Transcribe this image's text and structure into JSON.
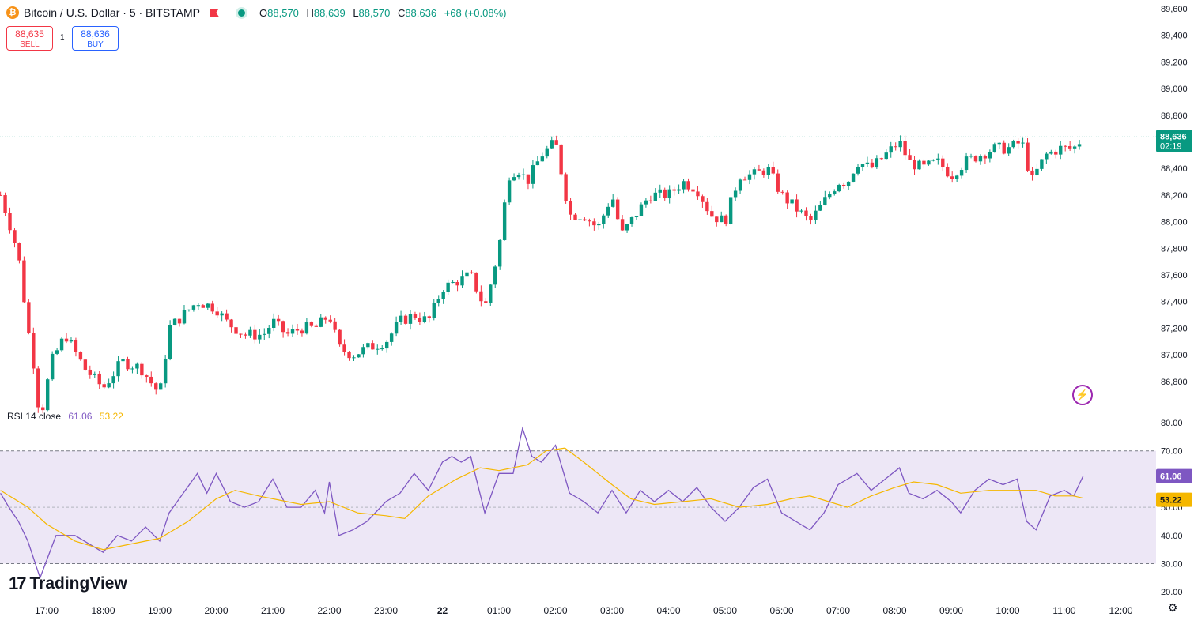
{
  "header": {
    "coin_icon": "bitcoin-icon",
    "coin_glyph": "₿",
    "title": "Bitcoin / U.S. Dollar · 5 · BITSTAMP",
    "flag_icon": "flag-icon",
    "status_icon": "market-open-dot-icon",
    "ohlc": {
      "o_label": "O",
      "o": "88,570",
      "h_label": "H",
      "h": "88,639",
      "l_label": "L",
      "l": "88,570",
      "c_label": "C",
      "c": "88,636",
      "change": "+68 (+0.08%)"
    }
  },
  "trade": {
    "sell_price": "88,635",
    "sell_label": "SELL",
    "qty": "1",
    "buy_price": "88,636",
    "buy_label": "BUY"
  },
  "rsi_legend": {
    "label": "RSI 14 close",
    "rsi_value": "61.06",
    "ma_value": "53.22"
  },
  "logo": {
    "mark": "17",
    "text": "TradingView"
  },
  "icons": {
    "flash": "lightning-icon",
    "settings": "gear-icon"
  },
  "colors": {
    "up": "#089981",
    "down": "#f23645",
    "rsi": "#7e57c2",
    "rsi_ma": "#f5b700",
    "band": "#ede7f6"
  },
  "chart_data": [
    {
      "type": "candlestick",
      "title": "Bitcoin / U.S. Dollar · 5 · BITSTAMP",
      "ylim": [
        86500,
        89650
      ],
      "y_ticks": [
        "89,600",
        "89,400",
        "89,200",
        "89,000",
        "88,800",
        "88,600",
        "88,400",
        "88,200",
        "88,000",
        "87,800",
        "87,600",
        "87,400",
        "87,200",
        "87,000",
        "86,800"
      ],
      "x_ticks": [
        "17:00",
        "18:00",
        "19:00",
        "20:00",
        "21:00",
        "22:00",
        "23:00",
        "22",
        "01:00",
        "02:00",
        "03:00",
        "04:00",
        "05:00",
        "06:00",
        "07:00",
        "08:00",
        "09:00",
        "10:00",
        "11:00",
        "12:00"
      ],
      "last_price": "88,636",
      "countdown": "02:19",
      "close_path": [
        {
          "t": "16:11",
          "close": 88200
        },
        {
          "t": "16:20",
          "close": 88000
        },
        {
          "t": "16:30",
          "close": 87750
        },
        {
          "t": "16:40",
          "close": 87200
        },
        {
          "t": "16:48",
          "close": 86850
        },
        {
          "t": "16:53",
          "close": 86500
        },
        {
          "t": "17:05",
          "close": 86950
        },
        {
          "t": "17:20",
          "close": 87150
        },
        {
          "t": "17:40",
          "close": 86900
        },
        {
          "t": "18:00",
          "close": 86750
        },
        {
          "t": "18:20",
          "close": 86950
        },
        {
          "t": "18:40",
          "close": 86900
        },
        {
          "t": "19:00",
          "close": 86700
        },
        {
          "t": "19:10",
          "close": 87200
        },
        {
          "t": "19:25",
          "close": 87300
        },
        {
          "t": "19:40",
          "close": 87400
        },
        {
          "t": "20:00",
          "close": 87350
        },
        {
          "t": "20:10",
          "close": 87250
        },
        {
          "t": "20:30",
          "close": 87150
        },
        {
          "t": "20:50",
          "close": 87150
        },
        {
          "t": "21:00",
          "close": 87250
        },
        {
          "t": "21:15",
          "close": 87150
        },
        {
          "t": "21:30",
          "close": 87200
        },
        {
          "t": "21:45",
          "close": 87200
        },
        {
          "t": "22:00",
          "close": 87300
        },
        {
          "t": "22:10",
          "close": 87050
        },
        {
          "t": "22:25",
          "close": 87000
        },
        {
          "t": "22:40",
          "close": 87050
        },
        {
          "t": "23:00",
          "close": 87100
        },
        {
          "t": "23:15",
          "close": 87250
        },
        {
          "t": "23:30",
          "close": 87300
        },
        {
          "t": "23:45",
          "close": 87250
        },
        {
          "t": "00:00",
          "close": 87500
        },
        {
          "t": "00:15",
          "close": 87550
        },
        {
          "t": "00:30",
          "close": 87600
        },
        {
          "t": "00:45",
          "close": 87350
        },
        {
          "t": "01:00",
          "close": 87800
        },
        {
          "t": "01:10",
          "close": 88350
        },
        {
          "t": "01:20",
          "close": 88400
        },
        {
          "t": "01:30",
          "close": 88300
        },
        {
          "t": "01:45",
          "close": 88500
        },
        {
          "t": "02:00",
          "close": 88600
        },
        {
          "t": "02:15",
          "close": 88050
        },
        {
          "t": "02:30",
          "close": 88050
        },
        {
          "t": "02:45",
          "close": 87950
        },
        {
          "t": "03:00",
          "close": 88200
        },
        {
          "t": "03:10",
          "close": 87900
        },
        {
          "t": "03:25",
          "close": 88050
        },
        {
          "t": "03:40",
          "close": 88200
        },
        {
          "t": "04:00",
          "close": 88200
        },
        {
          "t": "04:15",
          "close": 88300
        },
        {
          "t": "04:30",
          "close": 88250
        },
        {
          "t": "04:45",
          "close": 88050
        },
        {
          "t": "05:00",
          "close": 88000
        },
        {
          "t": "05:15",
          "close": 88350
        },
        {
          "t": "05:30",
          "close": 88350
        },
        {
          "t": "05:45",
          "close": 88400
        },
        {
          "t": "06:00",
          "close": 88200
        },
        {
          "t": "06:15",
          "close": 88100
        },
        {
          "t": "06:30",
          "close": 88000
        },
        {
          "t": "06:45",
          "close": 88150
        },
        {
          "t": "07:00",
          "close": 88300
        },
        {
          "t": "07:10",
          "close": 88300
        },
        {
          "t": "07:20",
          "close": 88450
        },
        {
          "t": "07:35",
          "close": 88400
        },
        {
          "t": "07:50",
          "close": 88500
        },
        {
          "t": "08:05",
          "close": 88600
        },
        {
          "t": "08:15",
          "close": 88450
        },
        {
          "t": "08:30",
          "close": 88400
        },
        {
          "t": "08:45",
          "close": 88450
        },
        {
          "t": "09:00",
          "close": 88350
        },
        {
          "t": "09:15",
          "close": 88450
        },
        {
          "t": "09:30",
          "close": 88500
        },
        {
          "t": "09:45",
          "close": 88550
        },
        {
          "t": "10:00",
          "close": 88550
        },
        {
          "t": "10:15",
          "close": 88600
        },
        {
          "t": "10:25",
          "close": 88300
        },
        {
          "t": "10:40",
          "close": 88500
        },
        {
          "t": "10:55",
          "close": 88550
        },
        {
          "t": "11:10",
          "close": 88550
        },
        {
          "t": "11:20",
          "close": 88636
        }
      ]
    },
    {
      "type": "line",
      "title": "RSI 14 close",
      "ylim": [
        20,
        80
      ],
      "y_ticks": [
        "80.00",
        "70.00",
        "60.00",
        "50.00",
        "40.00",
        "30.00",
        "20.00"
      ],
      "band": [
        30,
        70
      ],
      "midline": 50,
      "current_rsi": "61.06",
      "current_ma": "53.22",
      "series": [
        {
          "name": "RSI",
          "values": [
            {
              "t": "16:11",
              "v": 55
            },
            {
              "t": "16:20",
              "v": 50
            },
            {
              "t": "16:30",
              "v": 45
            },
            {
              "t": "16:40",
              "v": 38
            },
            {
              "t": "16:53",
              "v": 25
            },
            {
              "t": "17:10",
              "v": 40
            },
            {
              "t": "17:30",
              "v": 40
            },
            {
              "t": "17:50",
              "v": 36
            },
            {
              "t": "18:00",
              "v": 34
            },
            {
              "t": "18:15",
              "v": 40
            },
            {
              "t": "18:30",
              "v": 38
            },
            {
              "t": "18:45",
              "v": 43
            },
            {
              "t": "19:00",
              "v": 38
            },
            {
              "t": "19:10",
              "v": 48
            },
            {
              "t": "19:25",
              "v": 55
            },
            {
              "t": "19:40",
              "v": 62
            },
            {
              "t": "19:50",
              "v": 55
            },
            {
              "t": "20:00",
              "v": 62
            },
            {
              "t": "20:15",
              "v": 52
            },
            {
              "t": "20:30",
              "v": 50
            },
            {
              "t": "20:45",
              "v": 52
            },
            {
              "t": "21:00",
              "v": 60
            },
            {
              "t": "21:15",
              "v": 50
            },
            {
              "t": "21:30",
              "v": 50
            },
            {
              "t": "21:45",
              "v": 56
            },
            {
              "t": "21:55",
              "v": 48
            },
            {
              "t": "22:00",
              "v": 59
            },
            {
              "t": "22:10",
              "v": 40
            },
            {
              "t": "22:25",
              "v": 42
            },
            {
              "t": "22:40",
              "v": 45
            },
            {
              "t": "23:00",
              "v": 52
            },
            {
              "t": "23:15",
              "v": 55
            },
            {
              "t": "23:30",
              "v": 62
            },
            {
              "t": "23:45",
              "v": 56
            },
            {
              "t": "00:00",
              "v": 66
            },
            {
              "t": "00:10",
              "v": 68
            },
            {
              "t": "00:20",
              "v": 66
            },
            {
              "t": "00:30",
              "v": 68
            },
            {
              "t": "00:45",
              "v": 48
            },
            {
              "t": "01:00",
              "v": 62
            },
            {
              "t": "01:15",
              "v": 62
            },
            {
              "t": "01:25",
              "v": 78
            },
            {
              "t": "01:35",
              "v": 68
            },
            {
              "t": "01:45",
              "v": 66
            },
            {
              "t": "02:00",
              "v": 72
            },
            {
              "t": "02:15",
              "v": 55
            },
            {
              "t": "02:30",
              "v": 52
            },
            {
              "t": "02:45",
              "v": 48
            },
            {
              "t": "03:00",
              "v": 56
            },
            {
              "t": "03:15",
              "v": 48
            },
            {
              "t": "03:30",
              "v": 56
            },
            {
              "t": "03:45",
              "v": 52
            },
            {
              "t": "04:00",
              "v": 56
            },
            {
              "t": "04:15",
              "v": 52
            },
            {
              "t": "04:30",
              "v": 57
            },
            {
              "t": "04:45",
              "v": 50
            },
            {
              "t": "05:00",
              "v": 45
            },
            {
              "t": "05:15",
              "v": 50
            },
            {
              "t": "05:30",
              "v": 57
            },
            {
              "t": "05:45",
              "v": 60
            },
            {
              "t": "06:00",
              "v": 48
            },
            {
              "t": "06:15",
              "v": 45
            },
            {
              "t": "06:30",
              "v": 42
            },
            {
              "t": "06:45",
              "v": 48
            },
            {
              "t": "07:00",
              "v": 58
            },
            {
              "t": "07:10",
              "v": 60
            },
            {
              "t": "07:20",
              "v": 62
            },
            {
              "t": "07:35",
              "v": 56
            },
            {
              "t": "07:50",
              "v": 60
            },
            {
              "t": "08:05",
              "v": 64
            },
            {
              "t": "08:15",
              "v": 55
            },
            {
              "t": "08:30",
              "v": 53
            },
            {
              "t": "08:45",
              "v": 56
            },
            {
              "t": "09:00",
              "v": 52
            },
            {
              "t": "09:10",
              "v": 48
            },
            {
              "t": "09:25",
              "v": 56
            },
            {
              "t": "09:40",
              "v": 60
            },
            {
              "t": "09:55",
              "v": 58
            },
            {
              "t": "10:10",
              "v": 60
            },
            {
              "t": "10:20",
              "v": 45
            },
            {
              "t": "10:30",
              "v": 42
            },
            {
              "t": "10:45",
              "v": 54
            },
            {
              "t": "11:00",
              "v": 56
            },
            {
              "t": "11:10",
              "v": 54
            },
            {
              "t": "11:20",
              "v": 61.06
            }
          ]
        },
        {
          "name": "RSI-based MA",
          "values": [
            {
              "t": "16:11",
              "v": 56
            },
            {
              "t": "16:40",
              "v": 50
            },
            {
              "t": "17:00",
              "v": 44
            },
            {
              "t": "17:30",
              "v": 38
            },
            {
              "t": "18:00",
              "v": 35
            },
            {
              "t": "18:30",
              "v": 37
            },
            {
              "t": "19:00",
              "v": 39
            },
            {
              "t": "19:30",
              "v": 45
            },
            {
              "t": "20:00",
              "v": 53
            },
            {
              "t": "20:20",
              "v": 56
            },
            {
              "t": "20:45",
              "v": 54
            },
            {
              "t": "21:00",
              "v": 53
            },
            {
              "t": "21:30",
              "v": 51
            },
            {
              "t": "22:00",
              "v": 52
            },
            {
              "t": "22:30",
              "v": 48
            },
            {
              "t": "23:00",
              "v": 47
            },
            {
              "t": "23:20",
              "v": 46
            },
            {
              "t": "23:45",
              "v": 54
            },
            {
              "t": "00:15",
              "v": 60
            },
            {
              "t": "00:40",
              "v": 64
            },
            {
              "t": "01:00",
              "v": 63
            },
            {
              "t": "01:30",
              "v": 65
            },
            {
              "t": "01:50",
              "v": 70
            },
            {
              "t": "02:10",
              "v": 71
            },
            {
              "t": "02:30",
              "v": 66
            },
            {
              "t": "03:00",
              "v": 58
            },
            {
              "t": "03:20",
              "v": 53
            },
            {
              "t": "03:45",
              "v": 51
            },
            {
              "t": "04:15",
              "v": 52
            },
            {
              "t": "04:45",
              "v": 53
            },
            {
              "t": "05:15",
              "v": 50
            },
            {
              "t": "05:45",
              "v": 51
            },
            {
              "t": "06:10",
              "v": 53
            },
            {
              "t": "06:30",
              "v": 54
            },
            {
              "t": "06:50",
              "v": 52
            },
            {
              "t": "07:10",
              "v": 50
            },
            {
              "t": "07:35",
              "v": 54
            },
            {
              "t": "08:00",
              "v": 57
            },
            {
              "t": "08:20",
              "v": 59
            },
            {
              "t": "08:45",
              "v": 58
            },
            {
              "t": "09:10",
              "v": 55
            },
            {
              "t": "09:40",
              "v": 56
            },
            {
              "t": "10:10",
              "v": 56
            },
            {
              "t": "10:30",
              "v": 56
            },
            {
              "t": "10:50",
              "v": 54
            },
            {
              "t": "11:10",
              "v": 54
            },
            {
              "t": "11:20",
              "v": 53.22
            }
          ]
        }
      ]
    }
  ]
}
